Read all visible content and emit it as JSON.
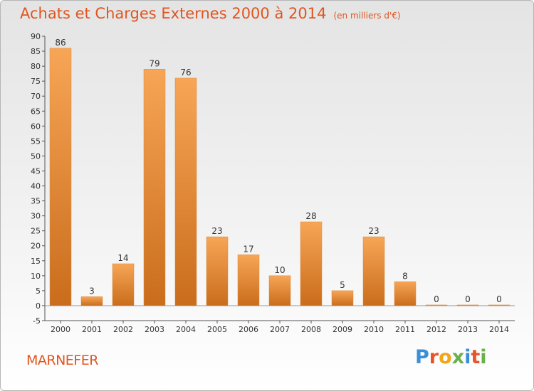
{
  "chart_data": {
    "type": "bar",
    "title": "Achats et Charges Externes 2000 à 2014",
    "unit_note": "(en milliers d'€)",
    "categories": [
      "2000",
      "2001",
      "2002",
      "2003",
      "2004",
      "2005",
      "2006",
      "2007",
      "2008",
      "2009",
      "2010",
      "2011",
      "2012",
      "2013",
      "2014"
    ],
    "values": [
      86,
      3,
      14,
      79,
      76,
      23,
      17,
      10,
      28,
      5,
      23,
      8,
      0,
      0,
      0
    ],
    "ylim": [
      -5,
      90
    ],
    "yticks": [
      -5,
      0,
      5,
      10,
      15,
      20,
      25,
      30,
      35,
      40,
      45,
      50,
      55,
      60,
      65,
      70,
      75,
      80,
      85,
      90
    ],
    "grid": false,
    "bar_color_light": "#f7a556",
    "bar_color_dark": "#c96d1c"
  },
  "footer": {
    "place": "MARNEFER",
    "logo": "Proxiti",
    "logo_colors": [
      "#3a8fd9",
      "#e8542a",
      "#f2a516",
      "#6ab04c",
      "#3a8fd9",
      "#e8542a",
      "#6ab04c"
    ]
  }
}
